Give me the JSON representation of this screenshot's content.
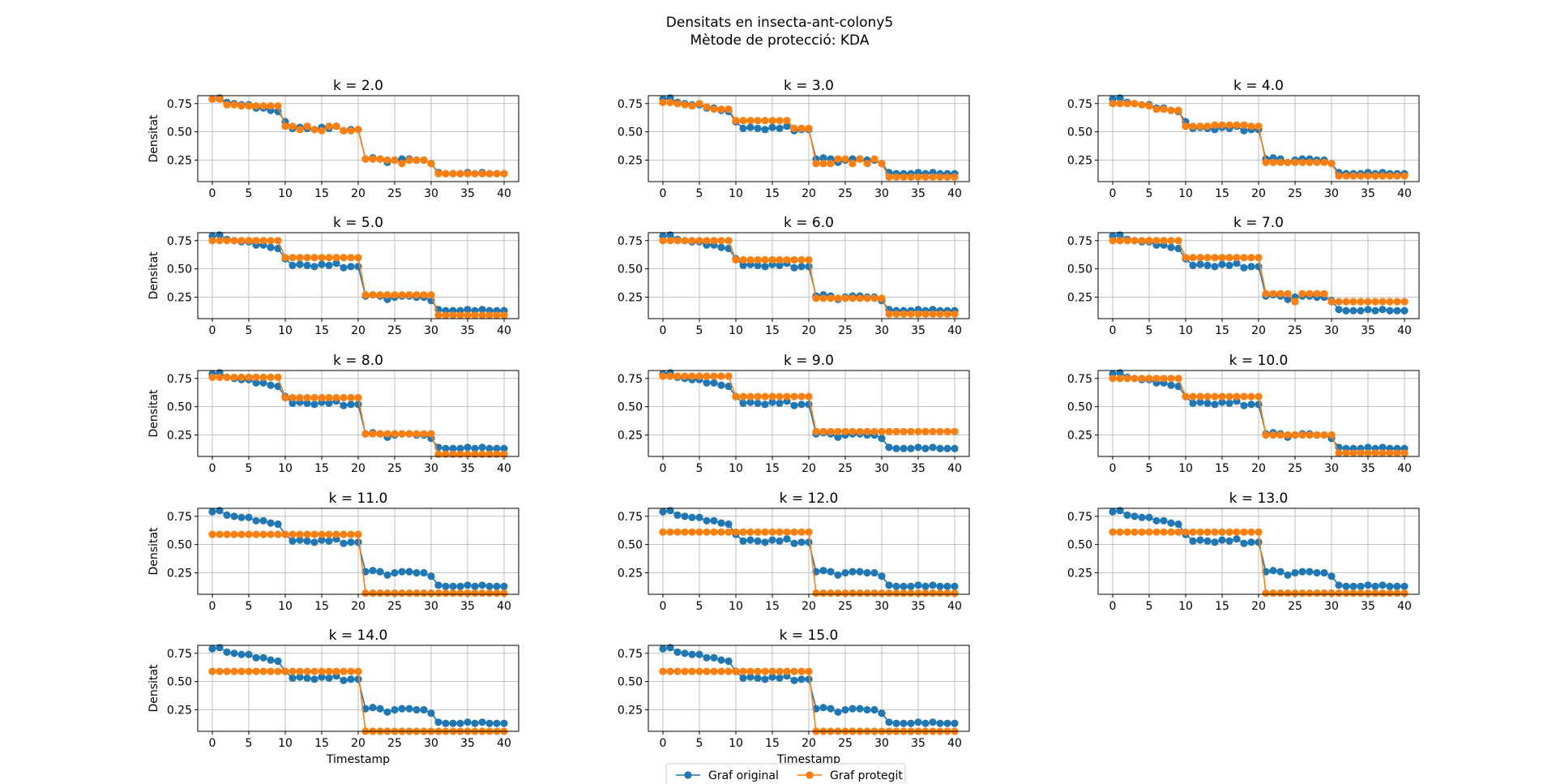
{
  "figure": {
    "title": "Densitats en insecta-ant-colony5",
    "subtitle": "Mètode de protecció: KDA"
  },
  "colors": {
    "original": "#1f77b4",
    "protected": "#ff7f0e",
    "grid": "#b0b0b0"
  },
  "legend": {
    "placement": "bottom-center",
    "entries": [
      {
        "label": "Graf original",
        "color": "#1f77b4"
      },
      {
        "label": "Graf protegit",
        "color": "#ff7f0e"
      }
    ]
  },
  "chart_data": {
    "type": "line",
    "markers": true,
    "grid": true,
    "xlabel": "Timestamp",
    "ylabel": "Densitat",
    "xlim": [
      -2,
      42
    ],
    "ylim": [
      0.06,
      0.82
    ],
    "xticks": [
      0,
      5,
      10,
      15,
      20,
      25,
      30,
      35,
      40
    ],
    "yticks": [
      "0.25",
      "0.50",
      "0.75"
    ],
    "ytick_values": [
      0.25,
      0.5,
      0.75
    ],
    "x": [
      0,
      1,
      2,
      3,
      4,
      5,
      6,
      7,
      8,
      9,
      10,
      11,
      12,
      13,
      14,
      15,
      16,
      17,
      18,
      19,
      20,
      21,
      22,
      23,
      24,
      25,
      26,
      27,
      28,
      29,
      30,
      31,
      32,
      33,
      34,
      35,
      36,
      37,
      38,
      39,
      40
    ],
    "original": [
      0.79,
      0.8,
      0.76,
      0.75,
      0.74,
      0.74,
      0.71,
      0.71,
      0.69,
      0.68,
      0.59,
      0.53,
      0.54,
      0.53,
      0.52,
      0.54,
      0.53,
      0.55,
      0.51,
      0.52,
      0.52,
      0.26,
      0.27,
      0.26,
      0.23,
      0.25,
      0.26,
      0.26,
      0.25,
      0.25,
      0.22,
      0.14,
      0.13,
      0.13,
      0.13,
      0.14,
      0.13,
      0.14,
      0.13,
      0.13,
      0.13
    ],
    "subplots": [
      {
        "title": "k = 2.0",
        "protected": [
          0.79,
          0.79,
          0.74,
          0.74,
          0.73,
          0.73,
          0.73,
          0.73,
          0.73,
          0.73,
          0.55,
          0.55,
          0.52,
          0.55,
          0.52,
          0.51,
          0.55,
          0.55,
          0.51,
          0.51,
          0.52,
          0.26,
          0.26,
          0.26,
          0.25,
          0.25,
          0.22,
          0.25,
          0.25,
          0.25,
          0.22,
          0.13,
          0.13,
          0.13,
          0.13,
          0.13,
          0.13,
          0.13,
          0.13,
          0.13,
          0.13
        ]
      },
      {
        "title": "k = 3.0",
        "protected": [
          0.76,
          0.76,
          0.75,
          0.74,
          0.73,
          0.75,
          0.72,
          0.7,
          0.7,
          0.7,
          0.6,
          0.6,
          0.6,
          0.6,
          0.6,
          0.6,
          0.6,
          0.6,
          0.53,
          0.53,
          0.53,
          0.22,
          0.22,
          0.22,
          0.26,
          0.26,
          0.22,
          0.26,
          0.22,
          0.26,
          0.22,
          0.1,
          0.1,
          0.1,
          0.1,
          0.1,
          0.1,
          0.1,
          0.1,
          0.1,
          0.1
        ]
      },
      {
        "title": "k = 4.0",
        "protected": [
          0.75,
          0.75,
          0.75,
          0.75,
          0.74,
          0.73,
          0.7,
          0.7,
          0.69,
          0.69,
          0.55,
          0.55,
          0.55,
          0.55,
          0.56,
          0.56,
          0.56,
          0.56,
          0.56,
          0.55,
          0.55,
          0.23,
          0.23,
          0.23,
          0.23,
          0.23,
          0.23,
          0.23,
          0.23,
          0.23,
          0.22,
          0.11,
          0.11,
          0.11,
          0.11,
          0.11,
          0.11,
          0.11,
          0.11,
          0.11,
          0.11
        ]
      },
      {
        "title": "k = 5.0",
        "protected": [
          0.75,
          0.75,
          0.75,
          0.75,
          0.75,
          0.75,
          0.75,
          0.75,
          0.75,
          0.75,
          0.6,
          0.6,
          0.6,
          0.6,
          0.6,
          0.6,
          0.6,
          0.6,
          0.6,
          0.6,
          0.6,
          0.27,
          0.27,
          0.27,
          0.27,
          0.27,
          0.27,
          0.27,
          0.27,
          0.27,
          0.27,
          0.09,
          0.09,
          0.09,
          0.09,
          0.09,
          0.09,
          0.09,
          0.09,
          0.09,
          0.09
        ]
      },
      {
        "title": "k = 6.0",
        "protected": [
          0.75,
          0.75,
          0.75,
          0.75,
          0.75,
          0.75,
          0.75,
          0.75,
          0.75,
          0.75,
          0.58,
          0.58,
          0.58,
          0.58,
          0.58,
          0.58,
          0.58,
          0.58,
          0.58,
          0.58,
          0.58,
          0.24,
          0.24,
          0.24,
          0.24,
          0.24,
          0.24,
          0.24,
          0.24,
          0.24,
          0.24,
          0.1,
          0.1,
          0.1,
          0.1,
          0.1,
          0.1,
          0.1,
          0.1,
          0.1,
          0.1
        ]
      },
      {
        "title": "k = 7.0",
        "protected": [
          0.75,
          0.75,
          0.75,
          0.75,
          0.75,
          0.75,
          0.75,
          0.75,
          0.75,
          0.75,
          0.6,
          0.6,
          0.6,
          0.6,
          0.6,
          0.6,
          0.6,
          0.6,
          0.6,
          0.6,
          0.6,
          0.28,
          0.28,
          0.28,
          0.28,
          0.21,
          0.28,
          0.28,
          0.28,
          0.28,
          0.21,
          0.21,
          0.21,
          0.21,
          0.21,
          0.21,
          0.21,
          0.21,
          0.21,
          0.21,
          0.21
        ]
      },
      {
        "title": "k = 8.0",
        "protected": [
          0.76,
          0.76,
          0.76,
          0.76,
          0.76,
          0.76,
          0.76,
          0.76,
          0.76,
          0.76,
          0.58,
          0.58,
          0.58,
          0.58,
          0.58,
          0.58,
          0.58,
          0.58,
          0.58,
          0.58,
          0.58,
          0.26,
          0.26,
          0.26,
          0.26,
          0.26,
          0.26,
          0.26,
          0.26,
          0.26,
          0.26,
          0.08,
          0.08,
          0.08,
          0.08,
          0.08,
          0.08,
          0.08,
          0.08,
          0.08,
          0.08
        ]
      },
      {
        "title": "k = 9.0",
        "protected": [
          0.77,
          0.77,
          0.77,
          0.77,
          0.77,
          0.77,
          0.77,
          0.77,
          0.77,
          0.77,
          0.59,
          0.59,
          0.59,
          0.59,
          0.59,
          0.59,
          0.59,
          0.59,
          0.59,
          0.59,
          0.59,
          0.28,
          0.28,
          0.28,
          0.28,
          0.28,
          0.28,
          0.28,
          0.28,
          0.28,
          0.28,
          0.28,
          0.28,
          0.28,
          0.28,
          0.28,
          0.28,
          0.28,
          0.28,
          0.28,
          0.28
        ]
      },
      {
        "title": "k = 10.0",
        "protected": [
          0.75,
          0.75,
          0.75,
          0.75,
          0.75,
          0.75,
          0.75,
          0.75,
          0.75,
          0.75,
          0.59,
          0.59,
          0.59,
          0.59,
          0.59,
          0.59,
          0.59,
          0.59,
          0.59,
          0.59,
          0.59,
          0.25,
          0.25,
          0.25,
          0.25,
          0.25,
          0.25,
          0.25,
          0.25,
          0.25,
          0.25,
          0.09,
          0.09,
          0.09,
          0.09,
          0.09,
          0.09,
          0.09,
          0.09,
          0.09,
          0.09
        ]
      },
      {
        "title": "k = 11.0",
        "protected": [
          0.59,
          0.59,
          0.59,
          0.59,
          0.59,
          0.59,
          0.59,
          0.59,
          0.59,
          0.59,
          0.59,
          0.59,
          0.59,
          0.59,
          0.59,
          0.59,
          0.59,
          0.59,
          0.59,
          0.59,
          0.59,
          0.07,
          0.07,
          0.07,
          0.07,
          0.07,
          0.07,
          0.07,
          0.07,
          0.07,
          0.07,
          0.07,
          0.07,
          0.07,
          0.07,
          0.07,
          0.07,
          0.07,
          0.07,
          0.07,
          0.07
        ]
      },
      {
        "title": "k = 12.0",
        "protected": [
          0.61,
          0.61,
          0.61,
          0.61,
          0.61,
          0.61,
          0.61,
          0.61,
          0.61,
          0.61,
          0.61,
          0.61,
          0.61,
          0.61,
          0.61,
          0.61,
          0.61,
          0.61,
          0.61,
          0.61,
          0.61,
          0.07,
          0.07,
          0.07,
          0.07,
          0.07,
          0.07,
          0.07,
          0.07,
          0.07,
          0.07,
          0.07,
          0.07,
          0.07,
          0.07,
          0.07,
          0.07,
          0.07,
          0.07,
          0.07,
          0.07
        ]
      },
      {
        "title": "k = 13.0",
        "protected": [
          0.61,
          0.61,
          0.61,
          0.61,
          0.61,
          0.61,
          0.61,
          0.61,
          0.61,
          0.61,
          0.61,
          0.61,
          0.61,
          0.61,
          0.61,
          0.61,
          0.61,
          0.61,
          0.61,
          0.61,
          0.61,
          0.07,
          0.07,
          0.07,
          0.07,
          0.07,
          0.07,
          0.07,
          0.07,
          0.07,
          0.07,
          0.07,
          0.07,
          0.07,
          0.07,
          0.07,
          0.07,
          0.07,
          0.07,
          0.07,
          0.07
        ]
      },
      {
        "title": "k = 14.0",
        "protected": [
          0.59,
          0.59,
          0.59,
          0.59,
          0.59,
          0.59,
          0.59,
          0.59,
          0.59,
          0.59,
          0.59,
          0.59,
          0.59,
          0.59,
          0.59,
          0.59,
          0.59,
          0.59,
          0.59,
          0.59,
          0.59,
          0.06,
          0.06,
          0.06,
          0.06,
          0.06,
          0.06,
          0.06,
          0.06,
          0.06,
          0.06,
          0.06,
          0.06,
          0.06,
          0.06,
          0.06,
          0.06,
          0.06,
          0.06,
          0.06,
          0.06
        ]
      },
      {
        "title": "k = 15.0",
        "protected": [
          0.59,
          0.59,
          0.59,
          0.59,
          0.59,
          0.59,
          0.59,
          0.59,
          0.59,
          0.59,
          0.59,
          0.59,
          0.59,
          0.59,
          0.59,
          0.59,
          0.59,
          0.59,
          0.59,
          0.59,
          0.59,
          0.06,
          0.06,
          0.06,
          0.06,
          0.06,
          0.06,
          0.06,
          0.06,
          0.06,
          0.06,
          0.06,
          0.06,
          0.06,
          0.06,
          0.06,
          0.06,
          0.06,
          0.06,
          0.06,
          0.06
        ]
      }
    ]
  }
}
